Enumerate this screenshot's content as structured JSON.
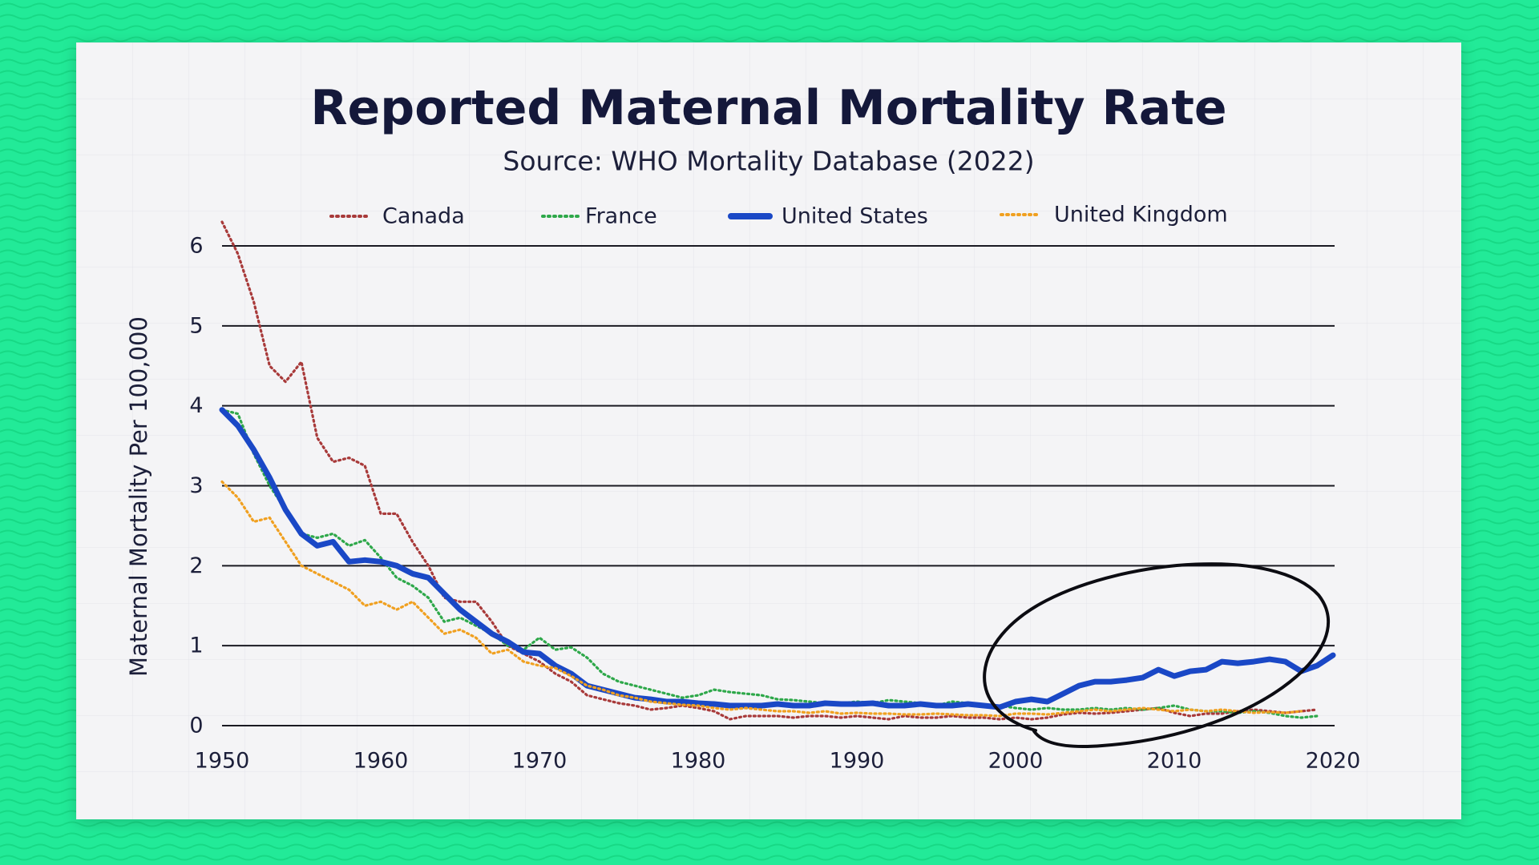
{
  "chart_data": {
    "type": "line",
    "title": "Reported Maternal Mortality Rate",
    "subtitle": "Source: WHO Mortality Database (2022)",
    "xlabel": "",
    "ylabel": "Maternal Mortality Per 100,000",
    "xlim": [
      1950,
      2020
    ],
    "ylim": [
      0,
      6
    ],
    "x_ticks": [
      1950,
      1960,
      1970,
      1980,
      1990,
      2000,
      2010,
      2020
    ],
    "y_ticks": [
      0,
      1,
      2,
      3,
      4,
      5,
      6
    ],
    "grid": "horizontal",
    "legend_placement": "top",
    "annotation": "hand-drawn ellipse around United States series, 2000-2020",
    "series": [
      {
        "name": "Canada",
        "color": "#a83a3a",
        "style": "dotted",
        "x": [
          1950,
          1951,
          1952,
          1953,
          1954,
          1955,
          1956,
          1957,
          1958,
          1959,
          1960,
          1961,
          1962,
          1963,
          1964,
          1965,
          1966,
          1967,
          1968,
          1969,
          1970,
          1971,
          1972,
          1973,
          1974,
          1975,
          1976,
          1977,
          1978,
          1979,
          1980,
          1981,
          1982,
          1983,
          1984,
          1985,
          1986,
          1987,
          1988,
          1989,
          1990,
          1991,
          1992,
          1993,
          1994,
          1995,
          1996,
          1997,
          1998,
          1999,
          2000,
          2001,
          2002,
          2003,
          2004,
          2005,
          2006,
          2007,
          2008,
          2009,
          2010,
          2011,
          2012,
          2013,
          2014,
          2015,
          2016,
          2017,
          2018,
          2019
        ],
        "y": [
          6.3,
          5.9,
          5.3,
          4.5,
          4.3,
          4.55,
          3.6,
          3.3,
          3.35,
          3.25,
          2.65,
          2.65,
          2.3,
          2.0,
          1.6,
          1.55,
          1.55,
          1.3,
          1.0,
          0.9,
          0.8,
          0.65,
          0.55,
          0.38,
          0.33,
          0.28,
          0.25,
          0.2,
          0.22,
          0.25,
          0.22,
          0.18,
          0.08,
          0.12,
          0.12,
          0.12,
          0.1,
          0.12,
          0.12,
          0.1,
          0.12,
          0.1,
          0.08,
          0.12,
          0.1,
          0.1,
          0.12,
          0.1,
          0.1,
          0.08,
          0.1,
          0.08,
          0.1,
          0.14,
          0.16,
          0.15,
          0.16,
          0.18,
          0.2,
          0.22,
          0.16,
          0.12,
          0.15,
          0.15,
          0.18,
          0.2,
          0.18,
          0.16,
          0.18,
          0.2
        ]
      },
      {
        "name": "France",
        "color": "#2ea84a",
        "style": "dotted",
        "x": [
          1950,
          1951,
          1952,
          1953,
          1954,
          1955,
          1956,
          1957,
          1958,
          1959,
          1960,
          1961,
          1962,
          1963,
          1964,
          1965,
          1966,
          1967,
          1968,
          1969,
          1970,
          1971,
          1972,
          1973,
          1974,
          1975,
          1976,
          1977,
          1978,
          1979,
          1980,
          1981,
          1982,
          1983,
          1984,
          1985,
          1986,
          1987,
          1988,
          1989,
          1990,
          1991,
          1992,
          1993,
          1994,
          1995,
          1996,
          1997,
          1998,
          1999,
          2000,
          2001,
          2002,
          2003,
          2004,
          2005,
          2006,
          2007,
          2008,
          2009,
          2010,
          2011,
          2012,
          2013,
          2014,
          2015,
          2016,
          2017,
          2018,
          2019
        ],
        "y": [
          3.95,
          3.9,
          3.4,
          3.0,
          2.7,
          2.4,
          2.35,
          2.4,
          2.25,
          2.32,
          2.1,
          1.85,
          1.75,
          1.6,
          1.3,
          1.35,
          1.25,
          1.15,
          1.0,
          0.95,
          1.1,
          0.95,
          0.98,
          0.85,
          0.65,
          0.55,
          0.5,
          0.45,
          0.4,
          0.35,
          0.38,
          0.45,
          0.42,
          0.4,
          0.38,
          0.33,
          0.32,
          0.3,
          0.28,
          0.28,
          0.3,
          0.28,
          0.32,
          0.3,
          0.28,
          0.25,
          0.3,
          0.28,
          0.25,
          0.25,
          0.22,
          0.2,
          0.22,
          0.2,
          0.2,
          0.22,
          0.2,
          0.22,
          0.2,
          0.22,
          0.25,
          0.2,
          0.18,
          0.18,
          0.16,
          0.18,
          0.16,
          0.12,
          0.1,
          0.12
        ]
      },
      {
        "name": "United States",
        "color": "#1a48c6",
        "style": "solid",
        "x": [
          1950,
          1951,
          1952,
          1953,
          1954,
          1955,
          1956,
          1957,
          1958,
          1959,
          1960,
          1961,
          1962,
          1963,
          1964,
          1965,
          1966,
          1967,
          1968,
          1969,
          1970,
          1971,
          1972,
          1973,
          1974,
          1975,
          1976,
          1977,
          1978,
          1979,
          1980,
          1981,
          1982,
          1983,
          1984,
          1985,
          1986,
          1987,
          1988,
          1989,
          1990,
          1991,
          1992,
          1993,
          1994,
          1995,
          1996,
          1997,
          1998,
          1999,
          2000,
          2001,
          2002,
          2003,
          2004,
          2005,
          2006,
          2007,
          2008,
          2009,
          2010,
          2011,
          2012,
          2013,
          2014,
          2015,
          2016,
          2017,
          2018,
          2019,
          2020
        ],
        "y": [
          3.95,
          3.75,
          3.45,
          3.1,
          2.7,
          2.4,
          2.25,
          2.3,
          2.05,
          2.07,
          2.05,
          2.0,
          1.9,
          1.85,
          1.65,
          1.45,
          1.3,
          1.15,
          1.05,
          0.92,
          0.9,
          0.75,
          0.65,
          0.5,
          0.45,
          0.4,
          0.35,
          0.33,
          0.3,
          0.3,
          0.28,
          0.27,
          0.25,
          0.25,
          0.25,
          0.27,
          0.25,
          0.25,
          0.28,
          0.27,
          0.27,
          0.28,
          0.25,
          0.25,
          0.27,
          0.25,
          0.25,
          0.27,
          0.25,
          0.23,
          0.3,
          0.33,
          0.3,
          0.4,
          0.5,
          0.55,
          0.55,
          0.57,
          0.6,
          0.7,
          0.62,
          0.68,
          0.7,
          0.8,
          0.78,
          0.8,
          0.83,
          0.8,
          0.68,
          0.75,
          0.88
        ]
      },
      {
        "name": "United Kingdom",
        "color": "#f0a020",
        "style": "dotted",
        "x": [
          1950,
          1951,
          1952,
          1953,
          1954,
          1955,
          1956,
          1957,
          1958,
          1959,
          1960,
          1961,
          1962,
          1963,
          1964,
          1965,
          1966,
          1967,
          1968,
          1969,
          1970,
          1971,
          1972,
          1973,
          1974,
          1975,
          1976,
          1977,
          1978,
          1979,
          1980,
          1981,
          1982,
          1983,
          1984,
          1985,
          1986,
          1987,
          1988,
          1989,
          1990,
          1991,
          1992,
          1993,
          1994,
          1995,
          1996,
          1997,
          1998,
          1999,
          2000,
          2001,
          2002,
          2003,
          2004,
          2005,
          2006,
          2007,
          2008,
          2009,
          2010,
          2011,
          2012,
          2013,
          2014,
          2015,
          2016,
          2017,
          2018
        ],
        "y": [
          3.05,
          2.85,
          2.55,
          2.6,
          2.3,
          2.0,
          1.9,
          1.8,
          1.7,
          1.5,
          1.55,
          1.45,
          1.55,
          1.35,
          1.15,
          1.2,
          1.1,
          0.9,
          0.95,
          0.8,
          0.75,
          0.72,
          0.62,
          0.5,
          0.45,
          0.38,
          0.35,
          0.3,
          0.28,
          0.26,
          0.25,
          0.22,
          0.2,
          0.22,
          0.2,
          0.18,
          0.18,
          0.16,
          0.18,
          0.15,
          0.16,
          0.15,
          0.15,
          0.14,
          0.14,
          0.15,
          0.14,
          0.13,
          0.13,
          0.12,
          0.15,
          0.15,
          0.14,
          0.16,
          0.18,
          0.2,
          0.18,
          0.2,
          0.22,
          0.2,
          0.18,
          0.2,
          0.18,
          0.2,
          0.18,
          0.16,
          0.17,
          0.16,
          0.18
        ]
      }
    ]
  }
}
